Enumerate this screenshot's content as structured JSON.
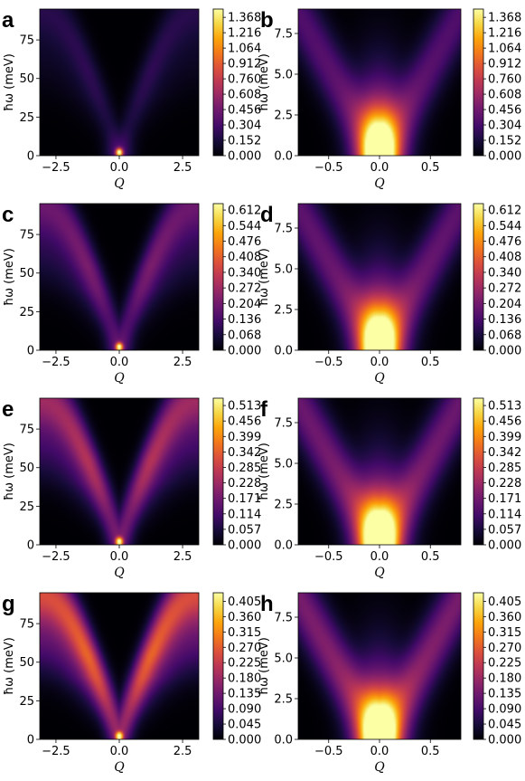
{
  "figure": {
    "colormap": "inferno",
    "background": "#ffffff"
  },
  "chart_data": [
    {
      "panel_label": "a",
      "type": "heatmap",
      "variant": "wide",
      "peak": 1.0,
      "xlabel": "Q",
      "ylabel": "ħω (meV)",
      "xlim": [
        -3.14,
        3.14
      ],
      "ylim": [
        0,
        95
      ],
      "xticks": [
        -2.5,
        0.0,
        2.5
      ],
      "xtick_labels": [
        "−2.5",
        "0.0",
        "2.5"
      ],
      "yticks": [
        0,
        25,
        50,
        75
      ],
      "ytick_labels": [
        "0",
        "25",
        "50",
        "75"
      ],
      "colorbar": {
        "vmin": 0.0,
        "vmax": 1.45,
        "ticks": [
          0.0,
          0.152,
          0.304,
          0.456,
          0.608,
          0.76,
          0.912,
          1.064,
          1.216,
          1.368
        ],
        "tick_labels": [
          "0.000",
          "0.152",
          "0.304",
          "0.456",
          "0.608",
          "0.760",
          "0.912",
          "1.064",
          "1.216",
          "1.368"
        ]
      },
      "branch_strength": 0.12
    },
    {
      "panel_label": "b",
      "type": "heatmap",
      "variant": "zoom",
      "peak": 1.0,
      "xlabel": "Q",
      "ylabel": "ħω (meV)",
      "xlim": [
        -0.8,
        0.8
      ],
      "ylim": [
        0,
        9.0
      ],
      "xticks": [
        -0.5,
        0.0,
        0.5
      ],
      "xtick_labels": [
        "−0.5",
        "0.0",
        "0.5"
      ],
      "yticks": [
        0,
        2.5,
        5.0,
        7.5
      ],
      "ytick_labels": [
        "0.0",
        "2.5",
        "5.0",
        "7.5"
      ],
      "colorbar": {
        "vmin": 0.0,
        "vmax": 1.45,
        "ticks": [
          0.0,
          0.152,
          0.304,
          0.456,
          0.608,
          0.76,
          0.912,
          1.064,
          1.216,
          1.368
        ],
        "tick_labels": [
          "0.000",
          "0.152",
          "0.304",
          "0.456",
          "0.608",
          "0.760",
          "0.912",
          "1.064",
          "1.216",
          "1.368"
        ]
      },
      "branch_strength": 0.3
    },
    {
      "panel_label": "c",
      "type": "heatmap",
      "variant": "wide",
      "peak": 1.0,
      "xlabel": "Q",
      "ylabel": "ħω (meV)",
      "xlim": [
        -3.14,
        3.14
      ],
      "ylim": [
        0,
        95
      ],
      "xticks": [
        -2.5,
        0.0,
        2.5
      ],
      "xtick_labels": [
        "−2.5",
        "0.0",
        "2.5"
      ],
      "yticks": [
        0,
        25,
        50,
        75
      ],
      "ytick_labels": [
        "0",
        "25",
        "50",
        "75"
      ],
      "colorbar": {
        "vmin": 0.0,
        "vmax": 0.64,
        "ticks": [
          0.0,
          0.068,
          0.136,
          0.204,
          0.272,
          0.34,
          0.408,
          0.476,
          0.544,
          0.612
        ],
        "tick_labels": [
          "0.000",
          "0.068",
          "0.136",
          "0.204",
          "0.272",
          "0.340",
          "0.408",
          "0.476",
          "0.544",
          "0.612"
        ]
      },
      "branch_strength": 0.3
    },
    {
      "panel_label": "d",
      "type": "heatmap",
      "variant": "zoom",
      "peak": 1.0,
      "xlabel": "Q",
      "ylabel": "ħω (meV)",
      "xlim": [
        -0.8,
        0.8
      ],
      "ylim": [
        0,
        9.0
      ],
      "xticks": [
        -0.5,
        0.0,
        0.5
      ],
      "xtick_labels": [
        "−0.5",
        "0.0",
        "0.5"
      ],
      "yticks": [
        0,
        2.5,
        5.0,
        7.5
      ],
      "ytick_labels": [
        "0.0",
        "2.5",
        "5.0",
        "7.5"
      ],
      "colorbar": {
        "vmin": 0.0,
        "vmax": 0.64,
        "ticks": [
          0.0,
          0.068,
          0.136,
          0.204,
          0.272,
          0.34,
          0.408,
          0.476,
          0.544,
          0.612
        ],
        "tick_labels": [
          "0.000",
          "0.068",
          "0.136",
          "0.204",
          "0.272",
          "0.340",
          "0.408",
          "0.476",
          "0.544",
          "0.612"
        ]
      },
      "branch_strength": 0.35
    },
    {
      "panel_label": "e",
      "type": "heatmap",
      "variant": "wide",
      "peak": 1.0,
      "xlabel": "Q",
      "ylabel": "ħω (meV)",
      "xlim": [
        -3.14,
        3.14
      ],
      "ylim": [
        0,
        95
      ],
      "xticks": [
        -2.5,
        0.0,
        2.5
      ],
      "xtick_labels": [
        "−2.5",
        "0.0",
        "2.5"
      ],
      "yticks": [
        0,
        25,
        50,
        75
      ],
      "ytick_labels": [
        "0",
        "25",
        "50",
        "75"
      ],
      "colorbar": {
        "vmin": 0.0,
        "vmax": 0.54,
        "ticks": [
          0.0,
          0.057,
          0.114,
          0.171,
          0.228,
          0.285,
          0.342,
          0.399,
          0.456,
          0.513
        ],
        "tick_labels": [
          "0.000",
          "0.057",
          "0.114",
          "0.171",
          "0.228",
          "0.285",
          "0.342",
          "0.399",
          "0.456",
          "0.513"
        ]
      },
      "branch_strength": 0.45
    },
    {
      "panel_label": "f",
      "type": "heatmap",
      "variant": "zoom",
      "peak": 1.0,
      "xlabel": "Q",
      "ylabel": "ħω (meV)",
      "xlim": [
        -0.8,
        0.8
      ],
      "ylim": [
        0,
        9.0
      ],
      "xticks": [
        -0.5,
        0.0,
        0.5
      ],
      "xtick_labels": [
        "−0.5",
        "0.0",
        "0.5"
      ],
      "yticks": [
        0,
        2.5,
        5.0,
        7.5
      ],
      "ytick_labels": [
        "0.0",
        "2.5",
        "5.0",
        "7.5"
      ],
      "colorbar": {
        "vmin": 0.0,
        "vmax": 0.54,
        "ticks": [
          0.0,
          0.057,
          0.114,
          0.171,
          0.228,
          0.285,
          0.342,
          0.399,
          0.456,
          0.513
        ],
        "tick_labels": [
          "0.000",
          "0.057",
          "0.114",
          "0.171",
          "0.228",
          "0.285",
          "0.342",
          "0.399",
          "0.456",
          "0.513"
        ]
      },
      "branch_strength": 0.4
    },
    {
      "panel_label": "g",
      "type": "heatmap",
      "variant": "wide",
      "peak": 1.0,
      "xlabel": "Q",
      "ylabel": "ħω (meV)",
      "xlim": [
        -3.14,
        3.14
      ],
      "ylim": [
        0,
        95
      ],
      "xticks": [
        -2.5,
        0.0,
        2.5
      ],
      "xtick_labels": [
        "−2.5",
        "0.0",
        "2.5"
      ],
      "yticks": [
        0,
        25,
        50,
        75
      ],
      "ytick_labels": [
        "0",
        "25",
        "50",
        "75"
      ],
      "colorbar": {
        "vmin": 0.0,
        "vmax": 0.43,
        "ticks": [
          0.0,
          0.045,
          0.09,
          0.135,
          0.18,
          0.225,
          0.27,
          0.315,
          0.36,
          0.405
        ],
        "tick_labels": [
          "0.000",
          "0.045",
          "0.090",
          "0.135",
          "0.180",
          "0.225",
          "0.270",
          "0.315",
          "0.360",
          "0.405"
        ]
      },
      "branch_strength": 0.65
    },
    {
      "panel_label": "h",
      "type": "heatmap",
      "variant": "zoom",
      "peak": 1.0,
      "xlabel": "Q",
      "ylabel": "ħω (meV)",
      "xlim": [
        -0.8,
        0.8
      ],
      "ylim": [
        0,
        9.0
      ],
      "xticks": [
        -0.5,
        0.0,
        0.5
      ],
      "xtick_labels": [
        "−0.5",
        "0.0",
        "0.5"
      ],
      "yticks": [
        0,
        2.5,
        5.0,
        7.5
      ],
      "ytick_labels": [
        "0.0",
        "2.5",
        "5.0",
        "7.5"
      ],
      "colorbar": {
        "vmin": 0.0,
        "vmax": 0.43,
        "ticks": [
          0.0,
          0.045,
          0.09,
          0.135,
          0.18,
          0.225,
          0.27,
          0.315,
          0.36,
          0.405
        ],
        "tick_labels": [
          "0.000",
          "0.045",
          "0.090",
          "0.135",
          "0.180",
          "0.225",
          "0.270",
          "0.315",
          "0.360",
          "0.405"
        ]
      },
      "branch_strength": 0.45
    }
  ]
}
